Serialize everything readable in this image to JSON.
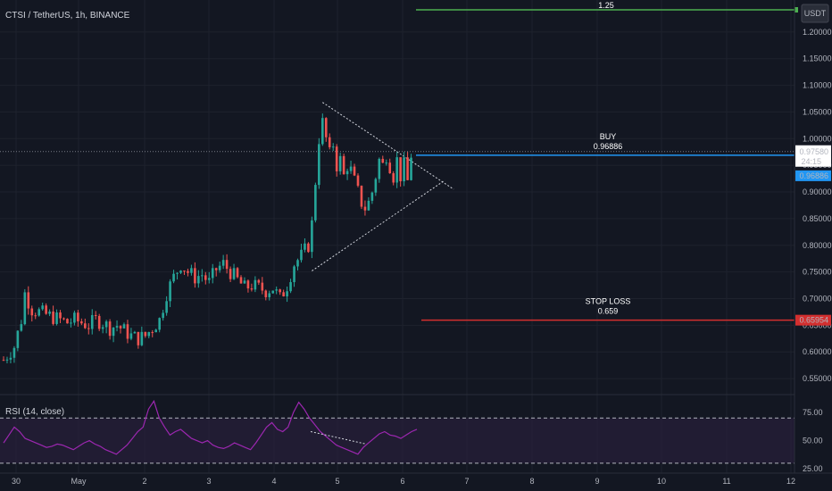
{
  "header": {
    "title": "CTSI / TetherUS, 1h, BINANCE",
    "currency_badge": "USDT"
  },
  "colors": {
    "bg": "#131722",
    "up": "#26a69a",
    "down": "#ef5350",
    "buy": "#2196f3",
    "stop": "#d32f2f",
    "target": "#4caf50",
    "rsi": "#9c27b0",
    "pattern": "#d1d4dc"
  },
  "chart_data": [
    {
      "type": "candlestick",
      "ylim": [
        0.52,
        1.26
      ],
      "y_ticks": [
        "1.20000",
        "1.15000",
        "1.10000",
        "1.05000",
        "1.00000",
        "0.95000",
        "0.90000",
        "0.85000",
        "0.80000",
        "0.75000",
        "0.70000",
        "0.65000",
        "0.60000",
        "0.55000"
      ],
      "x_ticks": [
        "30",
        "May",
        "2",
        "3",
        "4",
        "5",
        "6",
        "7",
        "8",
        "9",
        "10",
        "11",
        "12"
      ],
      "price_path": [
        [
          0,
          0.585
        ],
        [
          3,
          0.61
        ],
        [
          5,
          0.66
        ],
        [
          6,
          0.71
        ],
        [
          7,
          0.695
        ],
        [
          8,
          0.68
        ],
        [
          10,
          0.675
        ],
        [
          12,
          0.67
        ],
        [
          14,
          0.665
        ],
        [
          16,
          0.66
        ],
        [
          18,
          0.655
        ],
        [
          20,
          0.66
        ],
        [
          22,
          0.655
        ],
        [
          24,
          0.65
        ],
        [
          26,
          0.66
        ],
        [
          28,
          0.655
        ],
        [
          30,
          0.645
        ],
        [
          32,
          0.65
        ],
        [
          34,
          0.64
        ],
        [
          36,
          0.63
        ],
        [
          38,
          0.625
        ],
        [
          40,
          0.63
        ],
        [
          42,
          0.645
        ],
        [
          44,
          0.66
        ],
        [
          46,
          0.71
        ],
        [
          48,
          0.74
        ],
        [
          50,
          0.765
        ],
        [
          52,
          0.75
        ],
        [
          54,
          0.74
        ],
        [
          56,
          0.745
        ],
        [
          58,
          0.73
        ],
        [
          60,
          0.755
        ],
        [
          62,
          0.765
        ],
        [
          64,
          0.75
        ],
        [
          66,
          0.735
        ],
        [
          68,
          0.72
        ],
        [
          70,
          0.725
        ],
        [
          72,
          0.72
        ],
        [
          74,
          0.715
        ],
        [
          76,
          0.72
        ],
        [
          78,
          0.7
        ],
        [
          80,
          0.725
        ],
        [
          82,
          0.765
        ],
        [
          84,
          0.78
        ],
        [
          86,
          0.8
        ],
        [
          87,
          0.84
        ],
        [
          88,
          0.92
        ],
        [
          89,
          1.0
        ],
        [
          90,
          1.03
        ],
        [
          91,
          1.0
        ],
        [
          92,
          0.97
        ],
        [
          93,
          0.99
        ],
        [
          94,
          0.95
        ],
        [
          95,
          0.96
        ],
        [
          96,
          0.93
        ],
        [
          97,
          0.95
        ],
        [
          98,
          0.94
        ],
        [
          99,
          0.92
        ],
        [
          100,
          0.9
        ],
        [
          101,
          0.88
        ],
        [
          102,
          0.87
        ],
        [
          103,
          0.88
        ],
        [
          104,
          0.9
        ],
        [
          105,
          0.93
        ],
        [
          106,
          0.96
        ],
        [
          107,
          0.95
        ],
        [
          108,
          0.97
        ],
        [
          109,
          0.95
        ],
        [
          110,
          0.93
        ],
        [
          111,
          0.96
        ],
        [
          112,
          0.93
        ],
        [
          113,
          0.95
        ],
        [
          114,
          0.92
        ],
        [
          115,
          0.97
        ]
      ],
      "current_price": "0.97580",
      "countdown": "24:15",
      "buy": {
        "label": "BUY",
        "value": "0.96886",
        "axis_label": "0.96886",
        "price": 0.96886
      },
      "stop_loss": {
        "label": "STOP LOSS",
        "value": "0.659",
        "axis_label": "0.65954",
        "price": 0.65954
      },
      "target": {
        "value": "1.25",
        "price": 1.25
      },
      "triangle": {
        "top": [
          90,
          1.068
        ],
        "bottom": [
          87,
          0.752
        ],
        "apex": [
          127,
          0.905
        ]
      }
    },
    {
      "type": "line",
      "title": "RSI (14, close)",
      "ylim": [
        22,
        90
      ],
      "y_ticks": [
        "75.00",
        "50.00",
        "25.00"
      ],
      "bands": [
        70,
        30
      ],
      "values": [
        48,
        55,
        62,
        58,
        52,
        50,
        48,
        46,
        44,
        45,
        47,
        46,
        44,
        42,
        45,
        48,
        50,
        47,
        45,
        42,
        40,
        38,
        42,
        46,
        52,
        58,
        62,
        78,
        85,
        70,
        62,
        55,
        58,
        60,
        56,
        52,
        50,
        48,
        50,
        46,
        44,
        43,
        45,
        48,
        46,
        44,
        42,
        48,
        55,
        62,
        66,
        60,
        58,
        62,
        75,
        84,
        78,
        70,
        64,
        58,
        54,
        50,
        46,
        44,
        42,
        40,
        38,
        44,
        48,
        52,
        56,
        58,
        55,
        54,
        52,
        55,
        58,
        60
      ]
    }
  ]
}
